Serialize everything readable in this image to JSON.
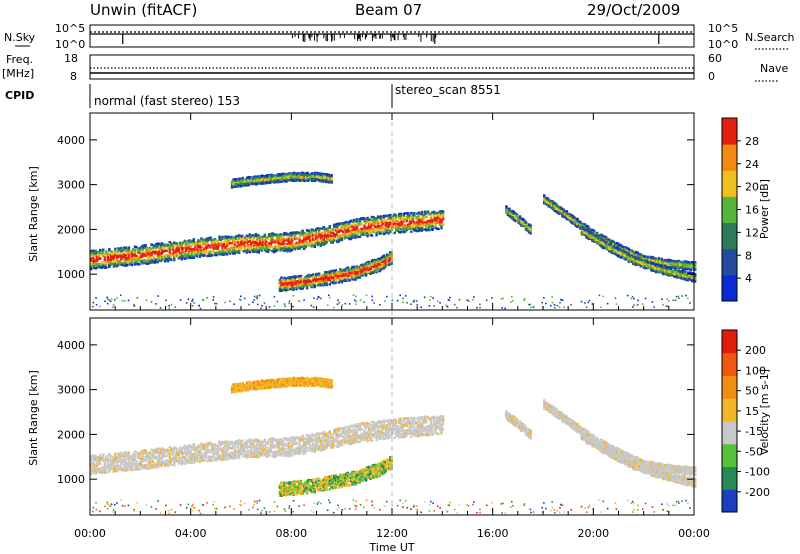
{
  "header": {
    "station": "Unwin (fitACF)",
    "beam": "Beam 07",
    "date": "29/Oct/2009"
  },
  "noise_panel": {
    "left_label": "N.Sky",
    "right_label": "N.Search",
    "left_ticks": [
      "10^5",
      "10^0"
    ],
    "right_ticks": [
      "10^5",
      "10^0"
    ]
  },
  "freq_panel": {
    "left_label_1": "Freq.",
    "left_label_2": "[MHz]",
    "right_label": "Nave",
    "left_ticks": [
      "18",
      "8"
    ],
    "right_ticks": [
      "60",
      "0"
    ]
  },
  "cpid": {
    "label": "CPID",
    "segments": [
      {
        "text": "normal (fast stereo) 153",
        "start_hour": 0
      },
      {
        "text": "stereo_scan 8551",
        "start_hour": 12.0
      }
    ]
  },
  "time_axis": {
    "label": "Time UT",
    "ticks": [
      "00:00",
      "04:00",
      "08:00",
      "12:00",
      "16:00",
      "20:00",
      "00:00"
    ],
    "range_hours": [
      0,
      24
    ]
  },
  "chart_data": [
    {
      "type": "heatmap",
      "title": "",
      "xlabel": "Time UT",
      "ylabel": "Slant Range [km]",
      "xlim": [
        0,
        24
      ],
      "ylim": [
        200,
        4600
      ],
      "yticks": [
        "1000",
        "2000",
        "3000",
        "4000"
      ],
      "colorbar": {
        "label": "Power [dB]",
        "ticks": [
          "28",
          "24",
          "20",
          "16",
          "12",
          "8",
          "4"
        ],
        "range": [
          0,
          32
        ],
        "colors": [
          "#0a2ad8",
          "#234a9e",
          "#2d7a58",
          "#55b53a",
          "#f0c020",
          "#f08a10",
          "#e62010"
        ]
      },
      "bands": [
        {
          "name": "band-upper",
          "t": [
            5.6,
            6.2,
            7.0,
            8.0,
            9.0,
            9.6
          ],
          "r": [
            3050,
            3100,
            3150,
            3200,
            3200,
            3150
          ]
        },
        {
          "name": "band-mid",
          "t": [
            0.0,
            2.0,
            4.0,
            6.0,
            8.0,
            9.5,
            10.5,
            12.0,
            13.0,
            14.0
          ],
          "r": [
            1350,
            1450,
            1600,
            1700,
            1750,
            1900,
            2050,
            2150,
            2200,
            2250
          ]
        },
        {
          "name": "band-low",
          "t": [
            7.5,
            8.5,
            9.5,
            10.5,
            11.5,
            12.0
          ],
          "r": [
            800,
            850,
            950,
            1050,
            1250,
            1400
          ]
        },
        {
          "name": "band-right-1",
          "t": [
            18.0,
            19.0,
            20.0,
            21.0,
            22.0,
            23.0,
            24.0
          ],
          "r": [
            2700,
            2300,
            1900,
            1600,
            1350,
            1250,
            1200
          ]
        },
        {
          "name": "band-right-2",
          "t": [
            19.5,
            20.5,
            21.5,
            22.5,
            23.5,
            24.0
          ],
          "r": [
            2000,
            1650,
            1350,
            1150,
            1000,
            950
          ]
        },
        {
          "name": "band-16h",
          "t": [
            16.5,
            17.0,
            17.5
          ],
          "r": [
            2450,
            2250,
            2000
          ]
        }
      ]
    },
    {
      "type": "heatmap",
      "title": "",
      "xlabel": "Time UT",
      "ylabel": "Slant Range [km]",
      "xlim": [
        0,
        24
      ],
      "ylim": [
        200,
        4600
      ],
      "yticks": [
        "1000",
        "2000",
        "3000",
        "4000"
      ],
      "colorbar": {
        "label": "Velocity [m s-1]",
        "ticks": [
          "200",
          "100",
          "50",
          "15",
          "-15",
          "-50",
          "-100",
          "-200"
        ],
        "colors": [
          "#1b3fbf",
          "#2a8a55",
          "#56c23a",
          "#c8c8c8",
          "#f2b628",
          "#f08e12",
          "#ee5812",
          "#e01c0c"
        ]
      }
    }
  ]
}
